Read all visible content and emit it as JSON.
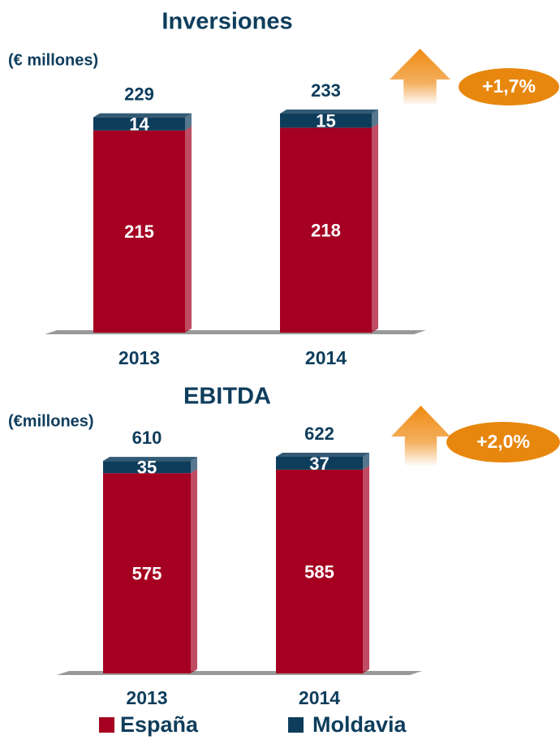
{
  "chart_data": [
    {
      "type": "bar",
      "stacked": true,
      "title": "Inversiones",
      "subtitle": "(€ millones)",
      "categories": [
        "2013",
        "2014"
      ],
      "series": [
        {
          "name": "España",
          "color": "#a50021",
          "values": [
            215,
            218
          ]
        },
        {
          "name": "Moldavia",
          "color": "#0e3d5c",
          "values": [
            14,
            15
          ]
        }
      ],
      "totals": [
        229,
        233
      ],
      "annotation": "+1,7%"
    },
    {
      "type": "bar",
      "stacked": true,
      "title": "EBITDA",
      "subtitle": "(€millones)",
      "categories": [
        "2013",
        "2014"
      ],
      "series": [
        {
          "name": "España",
          "color": "#a50021",
          "values": [
            575,
            585
          ]
        },
        {
          "name": "Moldavia",
          "color": "#0e3d5c",
          "values": [
            35,
            37
          ]
        }
      ],
      "totals": [
        610,
        622
      ],
      "annotation": "+2,0%"
    }
  ]
}
